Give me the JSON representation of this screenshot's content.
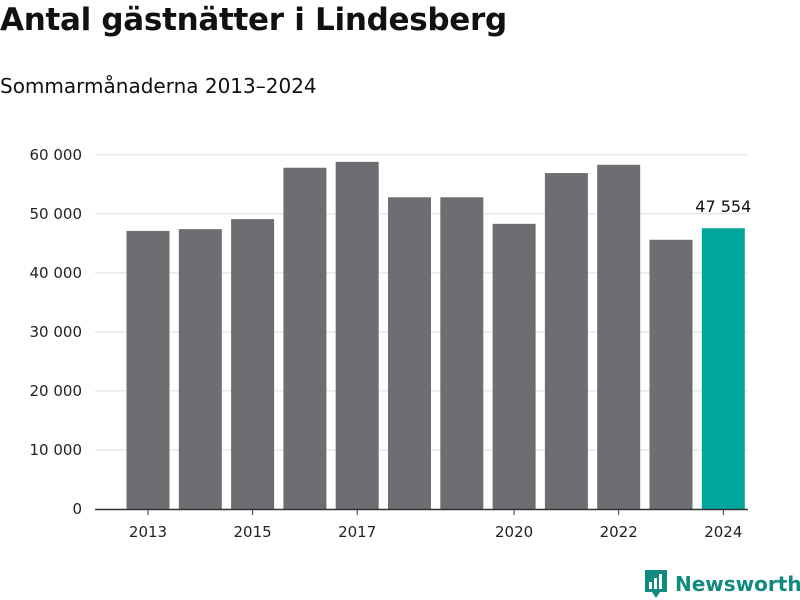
{
  "title": "Antal gästnätter i Lindesberg",
  "subtitle": "Sommarmånaderna 2013–2024",
  "brand": {
    "name": "Newsworthy",
    "icon": "newsworthy-logo-icon",
    "color": "#0f8a7e"
  },
  "colors": {
    "bar": "#6e6d72",
    "highlight": "#00a69c",
    "grid": "#dddddd",
    "axis": "#333333"
  },
  "chart_data": {
    "type": "bar",
    "title": "Antal gästnätter i Lindesberg",
    "subtitle": "Sommarmånaderna 2013–2024",
    "xlabel": "",
    "ylabel": "",
    "categories": [
      "2013",
      "2014",
      "2015",
      "2016",
      "2017",
      "2018",
      "2019",
      "2020",
      "2021",
      "2022",
      "2023",
      "2024"
    ],
    "values": [
      47100,
      47400,
      49100,
      57800,
      58800,
      52800,
      52800,
      48300,
      56900,
      58300,
      45600,
      47554
    ],
    "x_tick_labels": [
      "2013",
      "2015",
      "2017",
      "2020",
      "2022",
      "2024"
    ],
    "y_ticks": [
      0,
      10000,
      20000,
      30000,
      40000,
      50000,
      60000
    ],
    "y_tick_labels": [
      "0",
      "10 000",
      "20 000",
      "30 000",
      "40 000",
      "50 000",
      "60 000"
    ],
    "ylim": [
      0,
      62500
    ],
    "grid": true,
    "legend": "none",
    "highlight_index": 11,
    "data_labels": [
      {
        "index": 11,
        "text": "47 554"
      }
    ]
  }
}
